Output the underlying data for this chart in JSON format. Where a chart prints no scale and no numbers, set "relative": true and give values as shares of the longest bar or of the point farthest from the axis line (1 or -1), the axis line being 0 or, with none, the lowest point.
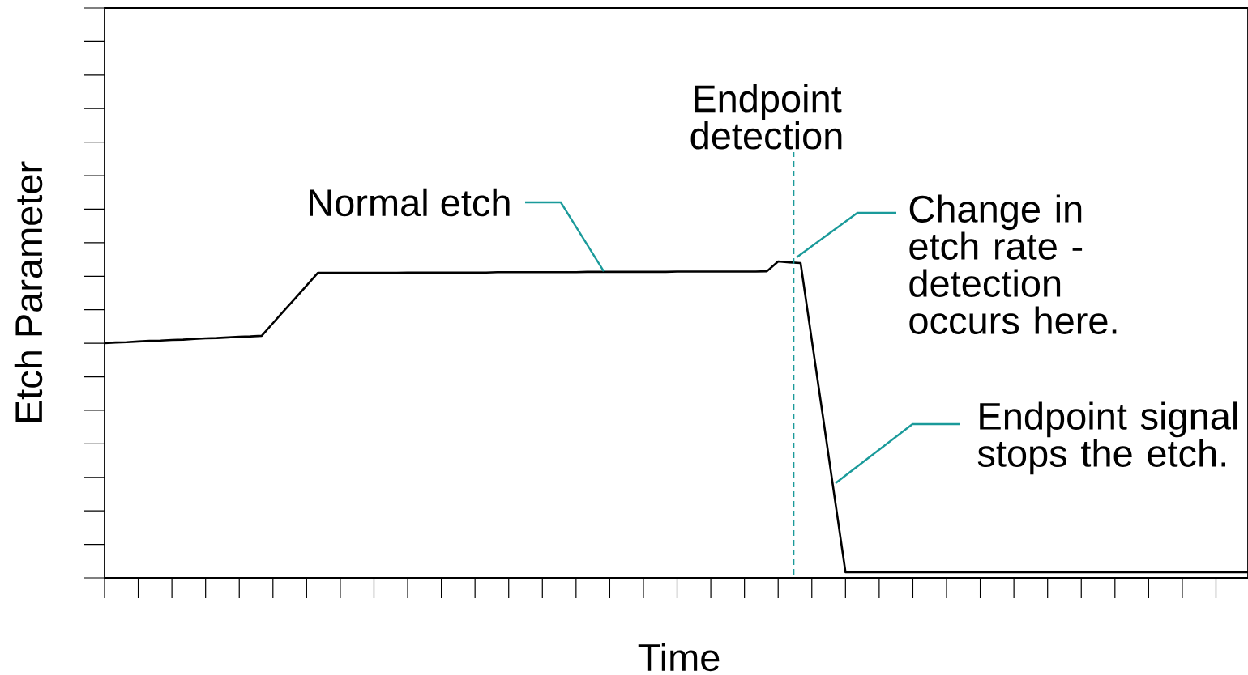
{
  "chart_data": {
    "type": "line",
    "relative": true,
    "xlabel": "Time",
    "ylabel": "Etch Parameter",
    "color": "#000000",
    "marker": "none",
    "line_style": "solid",
    "categories": [
      null,
      null,
      null,
      null,
      null,
      null,
      null,
      null,
      null,
      null,
      null,
      null,
      null,
      null,
      null,
      null,
      null,
      null,
      null,
      null,
      null,
      null,
      null,
      null,
      null,
      null,
      null,
      null,
      null,
      null,
      null,
      null,
      null,
      null,
      null,
      null,
      null,
      null,
      null,
      null,
      null,
      null,
      null,
      null,
      null,
      null,
      null,
      null,
      null,
      null,
      null,
      null,
      null,
      null,
      null,
      null,
      null,
      null,
      null,
      null,
      null,
      null,
      null,
      null,
      null,
      null,
      null,
      null,
      null,
      null,
      null,
      null,
      null,
      null,
      null,
      null,
      null,
      null,
      null,
      null,
      null,
      null,
      null,
      null,
      null,
      null,
      null,
      null,
      null,
      null,
      null,
      null,
      null,
      null,
      null,
      null,
      null,
      null,
      null,
      null,
      null,
      null,
      null
    ],
    "values": [
      0.742,
      0.744,
      0.745,
      0.747,
      0.749,
      0.75,
      0.752,
      0.753,
      0.755,
      0.757,
      0.758,
      0.76,
      0.762,
      0.763,
      0.765,
      0.805,
      0.845,
      0.884,
      0.924,
      0.964,
      0.964,
      0.964,
      0.964,
      0.964,
      0.964,
      0.964,
      0.964,
      0.965,
      0.965,
      0.965,
      0.965,
      0.965,
      0.965,
      0.965,
      0.965,
      0.966,
      0.966,
      0.966,
      0.966,
      0.966,
      0.966,
      0.966,
      0.966,
      0.967,
      0.967,
      0.967,
      0.967,
      0.967,
      0.967,
      0.967,
      0.967,
      0.968,
      0.968,
      0.968,
      0.968,
      0.968,
      0.968,
      0.968,
      0.968,
      0.969,
      1.0,
      0.997,
      0.995,
      0.751,
      0.507,
      0.262,
      0.018,
      0.018,
      0.018,
      0.018,
      0.018,
      0.018,
      0.018,
      0.018,
      0.018,
      0.018,
      0.018,
      0.018,
      0.018,
      0.018,
      0.018,
      0.018,
      0.018,
      0.018,
      0.018,
      0.018,
      0.018,
      0.018,
      0.018,
      0.018,
      0.018,
      0.018,
      0.018,
      0.018,
      0.018,
      0.018,
      0.018,
      0.018,
      0.018,
      0.018,
      0.018,
      0.018,
      0.018
    ],
    "annotations": [
      {
        "text": "Normal etch",
        "y": 0.969
      },
      "Endpoint detection",
      "Change in etch rate - detection occurs here.",
      "Endpoint signal stops the etch."
    ]
  }
}
